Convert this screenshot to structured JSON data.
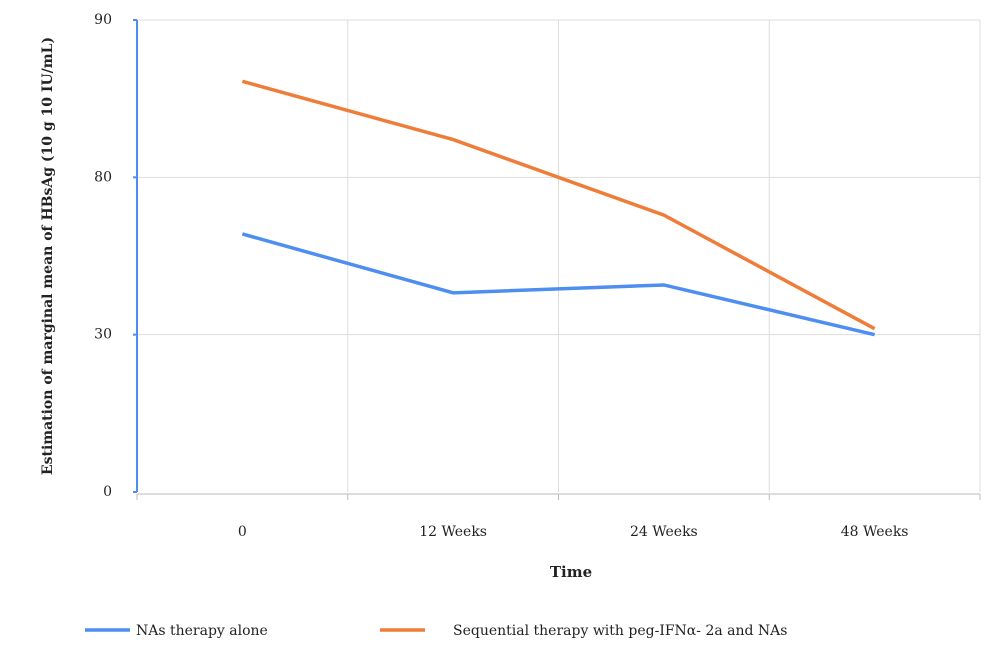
{
  "chart_data": {
    "type": "line",
    "x_label": "Time",
    "y_label": "Estimation of marginal mean of HBsAg (10 g 10 IU/mL)",
    "categories": [
      "0",
      "12 Weeks",
      "24 Weeks",
      "48 Weeks"
    ],
    "series": [
      {
        "name": "NAs therapy alone",
        "color": "#4d8ef0",
        "values": [
          62,
          43.3,
          45.8,
          30
        ]
      },
      {
        "name": "Sequential therapy with peg-IFNα- 2a and NAs",
        "color": "#ef7d3a",
        "values": [
          86.1,
          82.4,
          68,
          31.9
        ]
      }
    ],
    "ylim": [
      0,
      90
    ],
    "yticks": [
      0,
      30,
      80,
      90
    ],
    "grid": true,
    "legend": "bottom"
  }
}
